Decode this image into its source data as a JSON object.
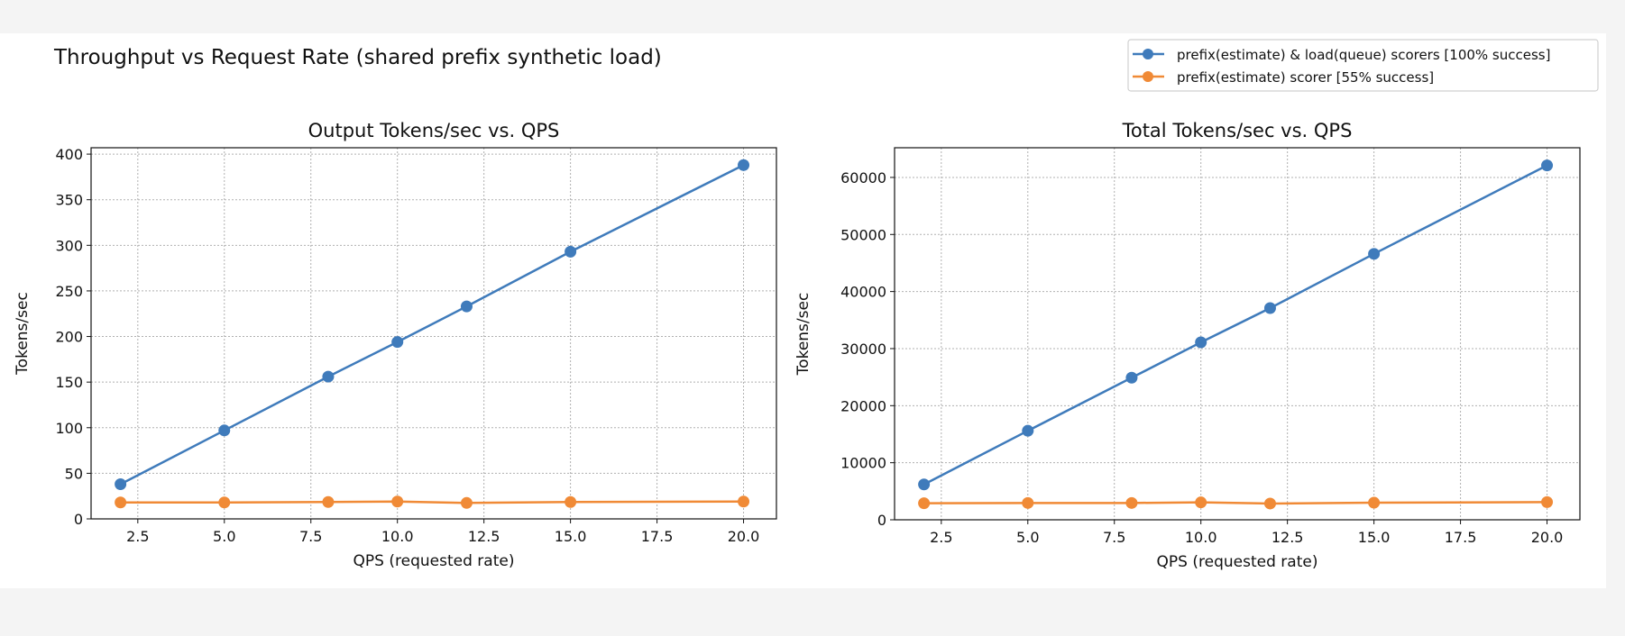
{
  "figure": {
    "suptitle": "Throughput vs Request Rate (shared prefix synthetic load)",
    "legend": {
      "placement": "top-right",
      "entries": [
        {
          "label": "prefix(estimate) & load(queue) scorers [100% success]",
          "color": "#3f7bbb"
        },
        {
          "label": "prefix(estimate) scorer [55% success]",
          "color": "#f08a36"
        }
      ]
    }
  },
  "chart_data": [
    {
      "type": "line",
      "title": "Output Tokens/sec vs. QPS",
      "xlabel": "QPS (requested rate)",
      "ylabel": "Tokens/sec",
      "xlim": [
        1.15,
        20.95
      ],
      "ylim": [
        0,
        407
      ],
      "xticks": [
        2.5,
        5.0,
        7.5,
        10.0,
        12.5,
        15.0,
        17.5,
        20.0
      ],
      "xtick_labels": [
        "2.5",
        "5.0",
        "7.5",
        "10.0",
        "12.5",
        "15.0",
        "17.5",
        "20.0"
      ],
      "yticks": [
        0,
        50,
        100,
        150,
        200,
        250,
        300,
        350,
        400
      ],
      "ytick_labels": [
        "0",
        "50",
        "100",
        "150",
        "200",
        "250",
        "300",
        "350",
        "400"
      ],
      "grid": true,
      "x": [
        2,
        5,
        8,
        10,
        12,
        15,
        20
      ],
      "series": [
        {
          "name": "prefix(estimate) & load(queue) scorers [100% success]",
          "color": "#3f7bbb",
          "values": [
            38,
            97,
            156,
            194,
            233,
            293,
            388
          ]
        },
        {
          "name": "prefix(estimate) scorer [55% success]",
          "color": "#f08a36",
          "values": [
            18,
            18,
            18.5,
            19,
            17.5,
            18.5,
            19
          ]
        }
      ]
    },
    {
      "type": "line",
      "title": "Total Tokens/sec vs. QPS",
      "xlabel": "QPS (requested rate)",
      "ylabel": "Tokens/sec",
      "xlim": [
        1.15,
        20.95
      ],
      "ylim": [
        0,
        65200
      ],
      "xticks": [
        2.5,
        5.0,
        7.5,
        10.0,
        12.5,
        15.0,
        17.5,
        20.0
      ],
      "xtick_labels": [
        "2.5",
        "5.0",
        "7.5",
        "10.0",
        "12.5",
        "15.0",
        "17.5",
        "20.0"
      ],
      "yticks": [
        0,
        10000,
        20000,
        30000,
        40000,
        50000,
        60000
      ],
      "ytick_labels": [
        "0",
        "10000",
        "20000",
        "30000",
        "40000",
        "50000",
        "60000"
      ],
      "grid": true,
      "x": [
        2,
        5,
        8,
        10,
        12,
        15,
        20
      ],
      "series": [
        {
          "name": "prefix(estimate) & load(queue) scorers [100% success]",
          "color": "#3f7bbb",
          "values": [
            6200,
            15600,
            24900,
            31100,
            37100,
            46600,
            62100
          ]
        },
        {
          "name": "prefix(estimate) scorer [55% success]",
          "color": "#f08a36",
          "values": [
            2900,
            2950,
            2950,
            3050,
            2850,
            3000,
            3100
          ]
        }
      ]
    }
  ]
}
